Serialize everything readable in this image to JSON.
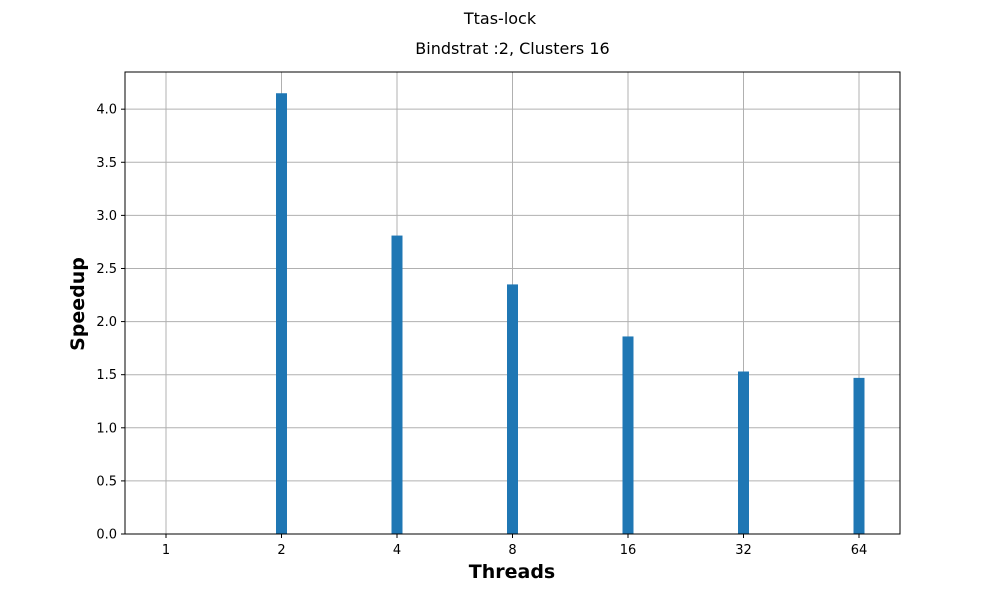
{
  "chart_data": {
    "type": "bar",
    "suptitle": "Ttas-lock",
    "title": "Bindstrat :2, Clusters 16",
    "xlabel": "Threads",
    "ylabel": "Speedup",
    "categories": [
      "1",
      "2",
      "4",
      "8",
      "16",
      "32",
      "64"
    ],
    "values": [
      0,
      4.15,
      2.81,
      2.35,
      1.86,
      1.53,
      1.47
    ],
    "ylim": [
      0,
      4.35
    ],
    "yticks": [
      "0.0",
      "0.5",
      "1.0",
      "1.5",
      "2.0",
      "2.5",
      "3.0",
      "3.5",
      "4.0"
    ],
    "grid": true,
    "bar_color": "#1f77b4",
    "grid_color": "#b0b0b0"
  }
}
